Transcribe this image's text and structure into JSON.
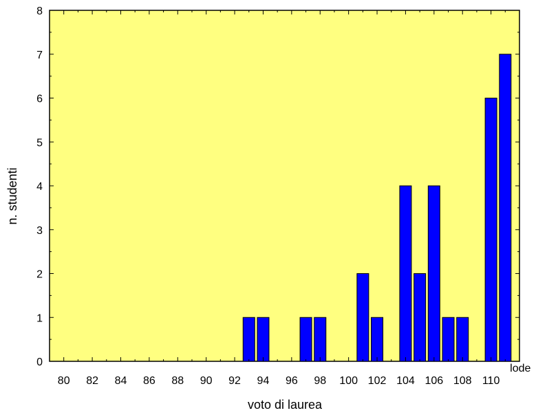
{
  "chart_data": {
    "type": "bar",
    "title": "",
    "xlabel": "voto di laurea",
    "ylabel": "n. studenti",
    "xlim": [
      79,
      112
    ],
    "ylim": [
      0,
      8
    ],
    "x_ticks": [
      80,
      82,
      84,
      86,
      88,
      90,
      92,
      94,
      96,
      98,
      100,
      102,
      104,
      106,
      108,
      110
    ],
    "x_extra_label": "lode",
    "y_ticks": [
      0,
      1,
      2,
      3,
      4,
      5,
      6,
      7,
      8
    ],
    "categories": [
      93,
      94,
      97,
      98,
      101,
      102,
      104,
      105,
      106,
      107,
      108,
      110,
      "lode"
    ],
    "values": [
      1,
      1,
      1,
      1,
      2,
      1,
      4,
      2,
      4,
      1,
      1,
      6,
      7
    ],
    "colors": {
      "plot_background": "#ffff80",
      "bar_fill": "#0000ff",
      "bar_stroke": "#000000"
    }
  }
}
